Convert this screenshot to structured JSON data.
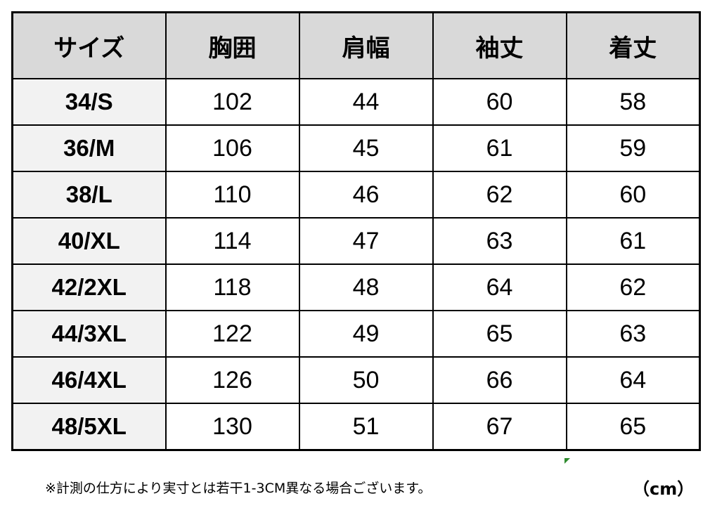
{
  "headers": [
    "サイズ",
    "胸囲",
    "肩幅",
    "袖丈",
    "着丈"
  ],
  "rows": [
    [
      "34/S",
      "102",
      "44",
      "60",
      "58"
    ],
    [
      "36/M",
      "106",
      "45",
      "61",
      "59"
    ],
    [
      "38/L",
      "110",
      "46",
      "62",
      "60"
    ],
    [
      "40/XL",
      "114",
      "47",
      "63",
      "61"
    ],
    [
      "42/2XL",
      "118",
      "48",
      "64",
      "62"
    ],
    [
      "44/3XL",
      "122",
      "49",
      "65",
      "63"
    ],
    [
      "46/4XL",
      "126",
      "50",
      "66",
      "64"
    ],
    [
      "48/5XL",
      "130",
      "51",
      "67",
      "65"
    ]
  ],
  "note": "※計測の仕方により実寸とは若干1-3CM異なる場合ございます。",
  "unit": "（cm）",
  "colors": {
    "header_bg": "#d9d9d9",
    "size_col_bg": "#f2f2f2",
    "border": "#000000"
  }
}
